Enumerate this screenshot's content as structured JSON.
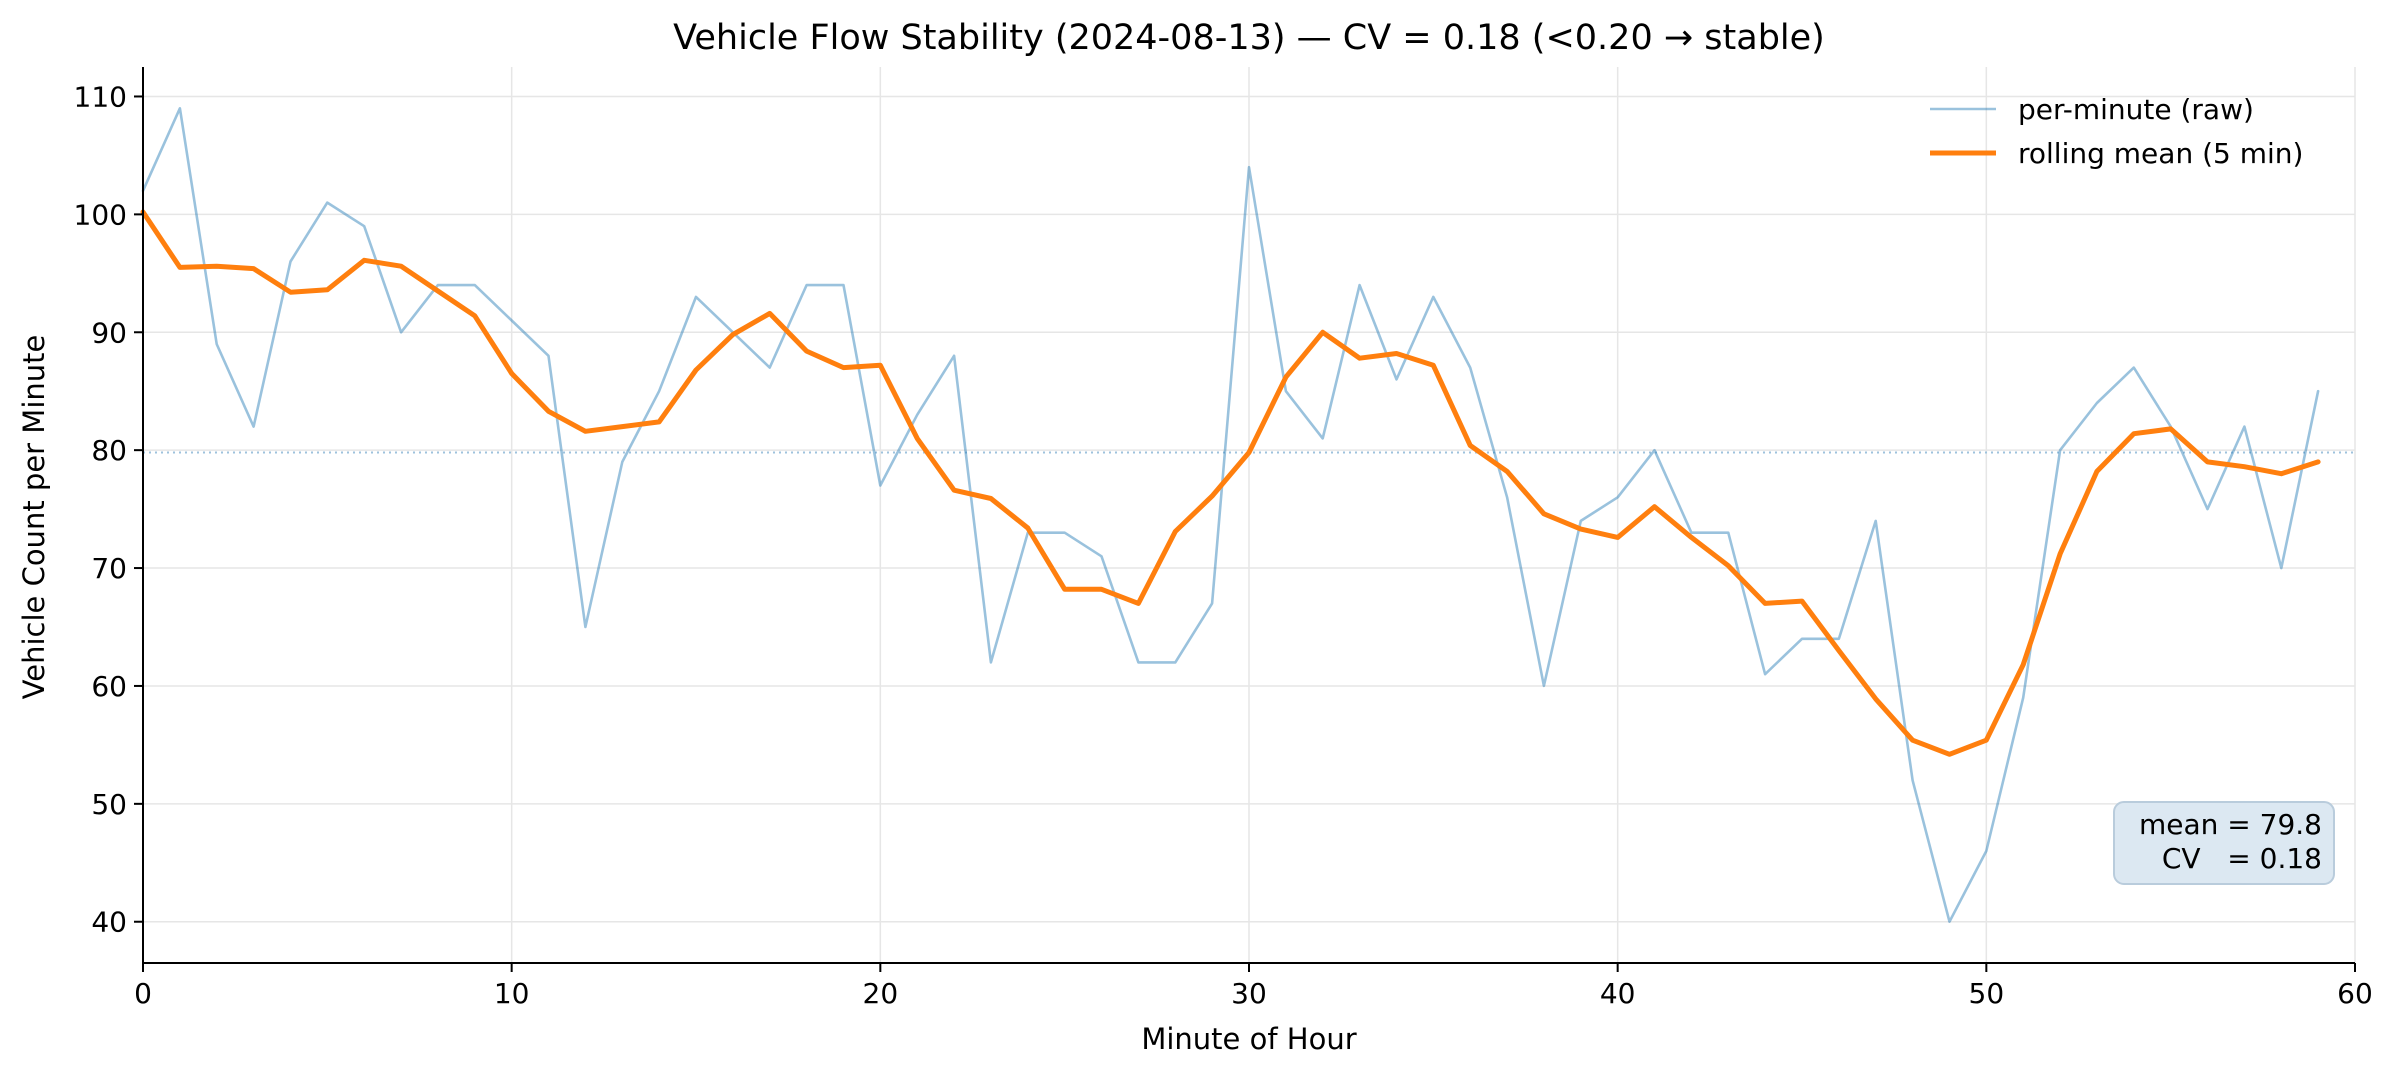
{
  "chart_data": {
    "type": "line",
    "title": "Vehicle Flow Stability (2024-08-13) — CV = 0.18 (<0.20 → stable)",
    "xlabel": "Minute of Hour",
    "ylabel": "Vehicle Count per Minute",
    "xlim": [
      0,
      60
    ],
    "ylim": [
      36.5,
      112.5
    ],
    "x_ticks": [
      0,
      10,
      20,
      30,
      40,
      50,
      60
    ],
    "y_ticks": [
      40,
      50,
      60,
      70,
      80,
      90,
      100,
      110
    ],
    "grid": true,
    "legend_position": "top-right",
    "mean_reference_line": 79.8,
    "x": [
      0,
      1,
      2,
      3,
      4,
      5,
      6,
      7,
      8,
      9,
      10,
      11,
      12,
      13,
      14,
      15,
      16,
      17,
      18,
      19,
      20,
      21,
      22,
      23,
      24,
      25,
      26,
      27,
      28,
      29,
      30,
      31,
      32,
      33,
      34,
      35,
      36,
      37,
      38,
      39,
      40,
      41,
      42,
      43,
      44,
      45,
      46,
      47,
      48,
      49,
      50,
      51,
      52,
      53,
      54,
      55,
      56,
      57,
      58,
      59
    ],
    "series": [
      {
        "name": "per-minute (raw)",
        "color": "#1f77b4",
        "values": [
          102,
          109,
          89,
          82,
          96,
          101,
          99,
          90,
          94,
          94,
          91,
          88,
          65,
          79,
          85,
          93,
          90,
          87,
          94,
          94,
          77,
          83,
          88,
          62,
          73,
          73,
          71,
          62,
          62,
          67,
          104,
          85,
          81,
          94,
          86,
          93,
          87,
          76,
          60,
          74,
          76,
          80,
          73,
          73,
          61,
          64,
          64,
          74,
          52,
          40,
          46,
          59,
          80,
          84,
          87,
          82,
          75,
          82,
          70,
          85
        ]
      },
      {
        "name": "rolling mean (5 min)",
        "color": "#ff7f0e",
        "values": [
          100.2,
          95.5,
          95.6,
          95.4,
          93.4,
          93.6,
          96.1,
          95.6,
          93.5,
          91.4,
          86.5,
          83.3,
          81.6,
          82.0,
          82.4,
          86.8,
          89.8,
          91.6,
          88.4,
          87.0,
          87.2,
          81.0,
          76.6,
          75.9,
          73.4,
          68.2,
          68.2,
          67.0,
          73.1,
          76.1,
          79.8,
          86.2,
          90.0,
          87.8,
          88.2,
          87.2,
          80.4,
          78.2,
          74.6,
          73.3,
          72.6,
          75.2,
          72.6,
          70.2,
          67.0,
          67.2,
          63.0,
          58.9,
          55.4,
          54.2,
          55.4,
          61.8,
          71.2,
          78.2,
          81.4,
          81.8,
          79.0,
          78.6,
          78.0,
          79.0
        ]
      }
    ],
    "stats_box": {
      "line1": "mean = 79.8",
      "line2": "CV   = 0.18"
    }
  }
}
